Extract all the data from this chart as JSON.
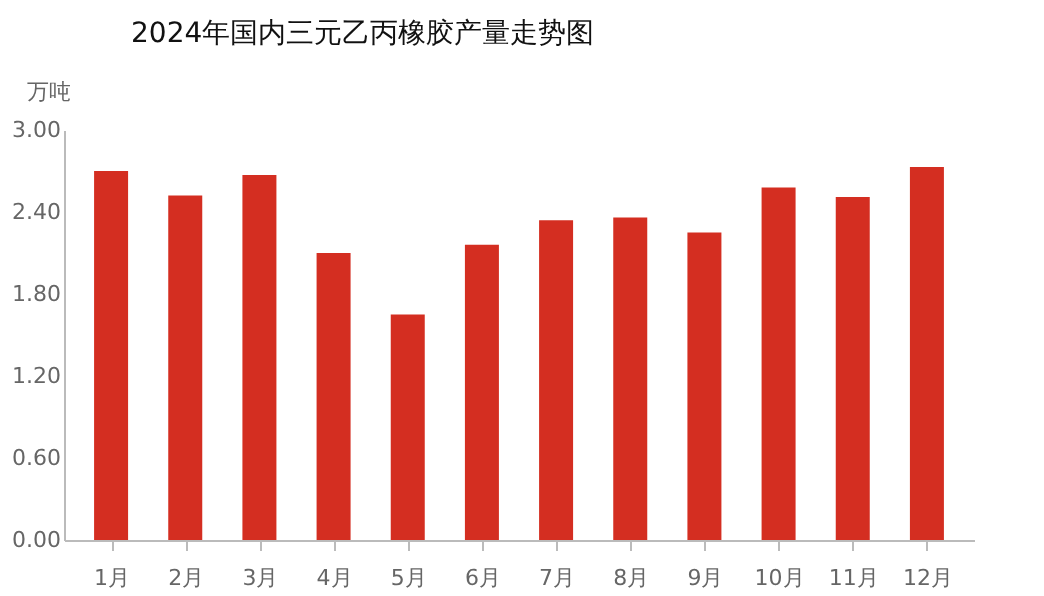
{
  "chart_data": {
    "type": "bar",
    "title": "2024年国内三元乙丙橡胶产量走势图",
    "ylabel": "万吨",
    "categories": [
      "1月",
      "2月",
      "3月",
      "4月",
      "5月",
      "6月",
      "7月",
      "8月",
      "9月",
      "10月",
      "11月",
      "12月"
    ],
    "values": [
      2.7,
      2.52,
      2.67,
      2.1,
      1.65,
      2.16,
      2.34,
      2.36,
      2.25,
      2.58,
      2.51,
      2.73
    ],
    "color": "#d42e21",
    "ylim": [
      0,
      3
    ],
    "yticks": [
      {
        "value": 0,
        "label": "0.00"
      },
      {
        "value": 0.6,
        "label": "0.60"
      },
      {
        "value": 1.2,
        "label": "1.20"
      },
      {
        "value": 1.8,
        "label": "1.80"
      },
      {
        "value": 2.4,
        "label": "2.40"
      },
      {
        "value": 3,
        "label": "3.00"
      }
    ],
    "grid": false
  }
}
